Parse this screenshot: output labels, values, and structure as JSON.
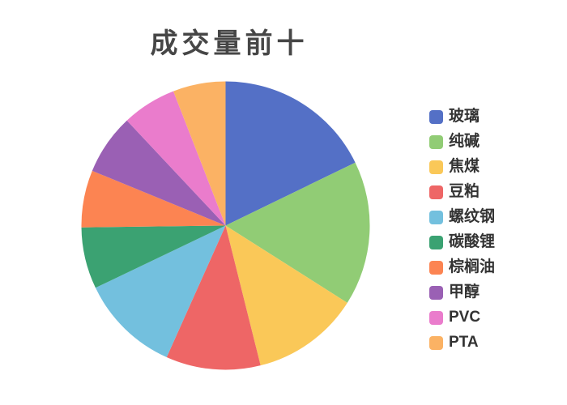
{
  "chart_data": {
    "type": "pie",
    "title": "成交量前十",
    "legend_position": "right",
    "start_angle_deg": 90,
    "direction": "clockwise",
    "labels": [
      "玻璃",
      "纯碱",
      "焦煤",
      "豆粕",
      "螺纹钢",
      "碳酸锂",
      "棕榈油",
      "甲醇",
      "PVC",
      "PTA"
    ],
    "values": [
      17.8,
      16.2,
      12.1,
      10.6,
      11.2,
      6.9,
      6.4,
      6.8,
      6.1,
      5.9
    ],
    "colors": [
      "#5470c6",
      "#91cc75",
      "#fac858",
      "#ee6666",
      "#73c0de",
      "#3ba272",
      "#fc8452",
      "#9a60b4",
      "#ea7ccc",
      "#fbb264"
    ],
    "title_color": "#464646",
    "legend_text_color": "#333333"
  }
}
